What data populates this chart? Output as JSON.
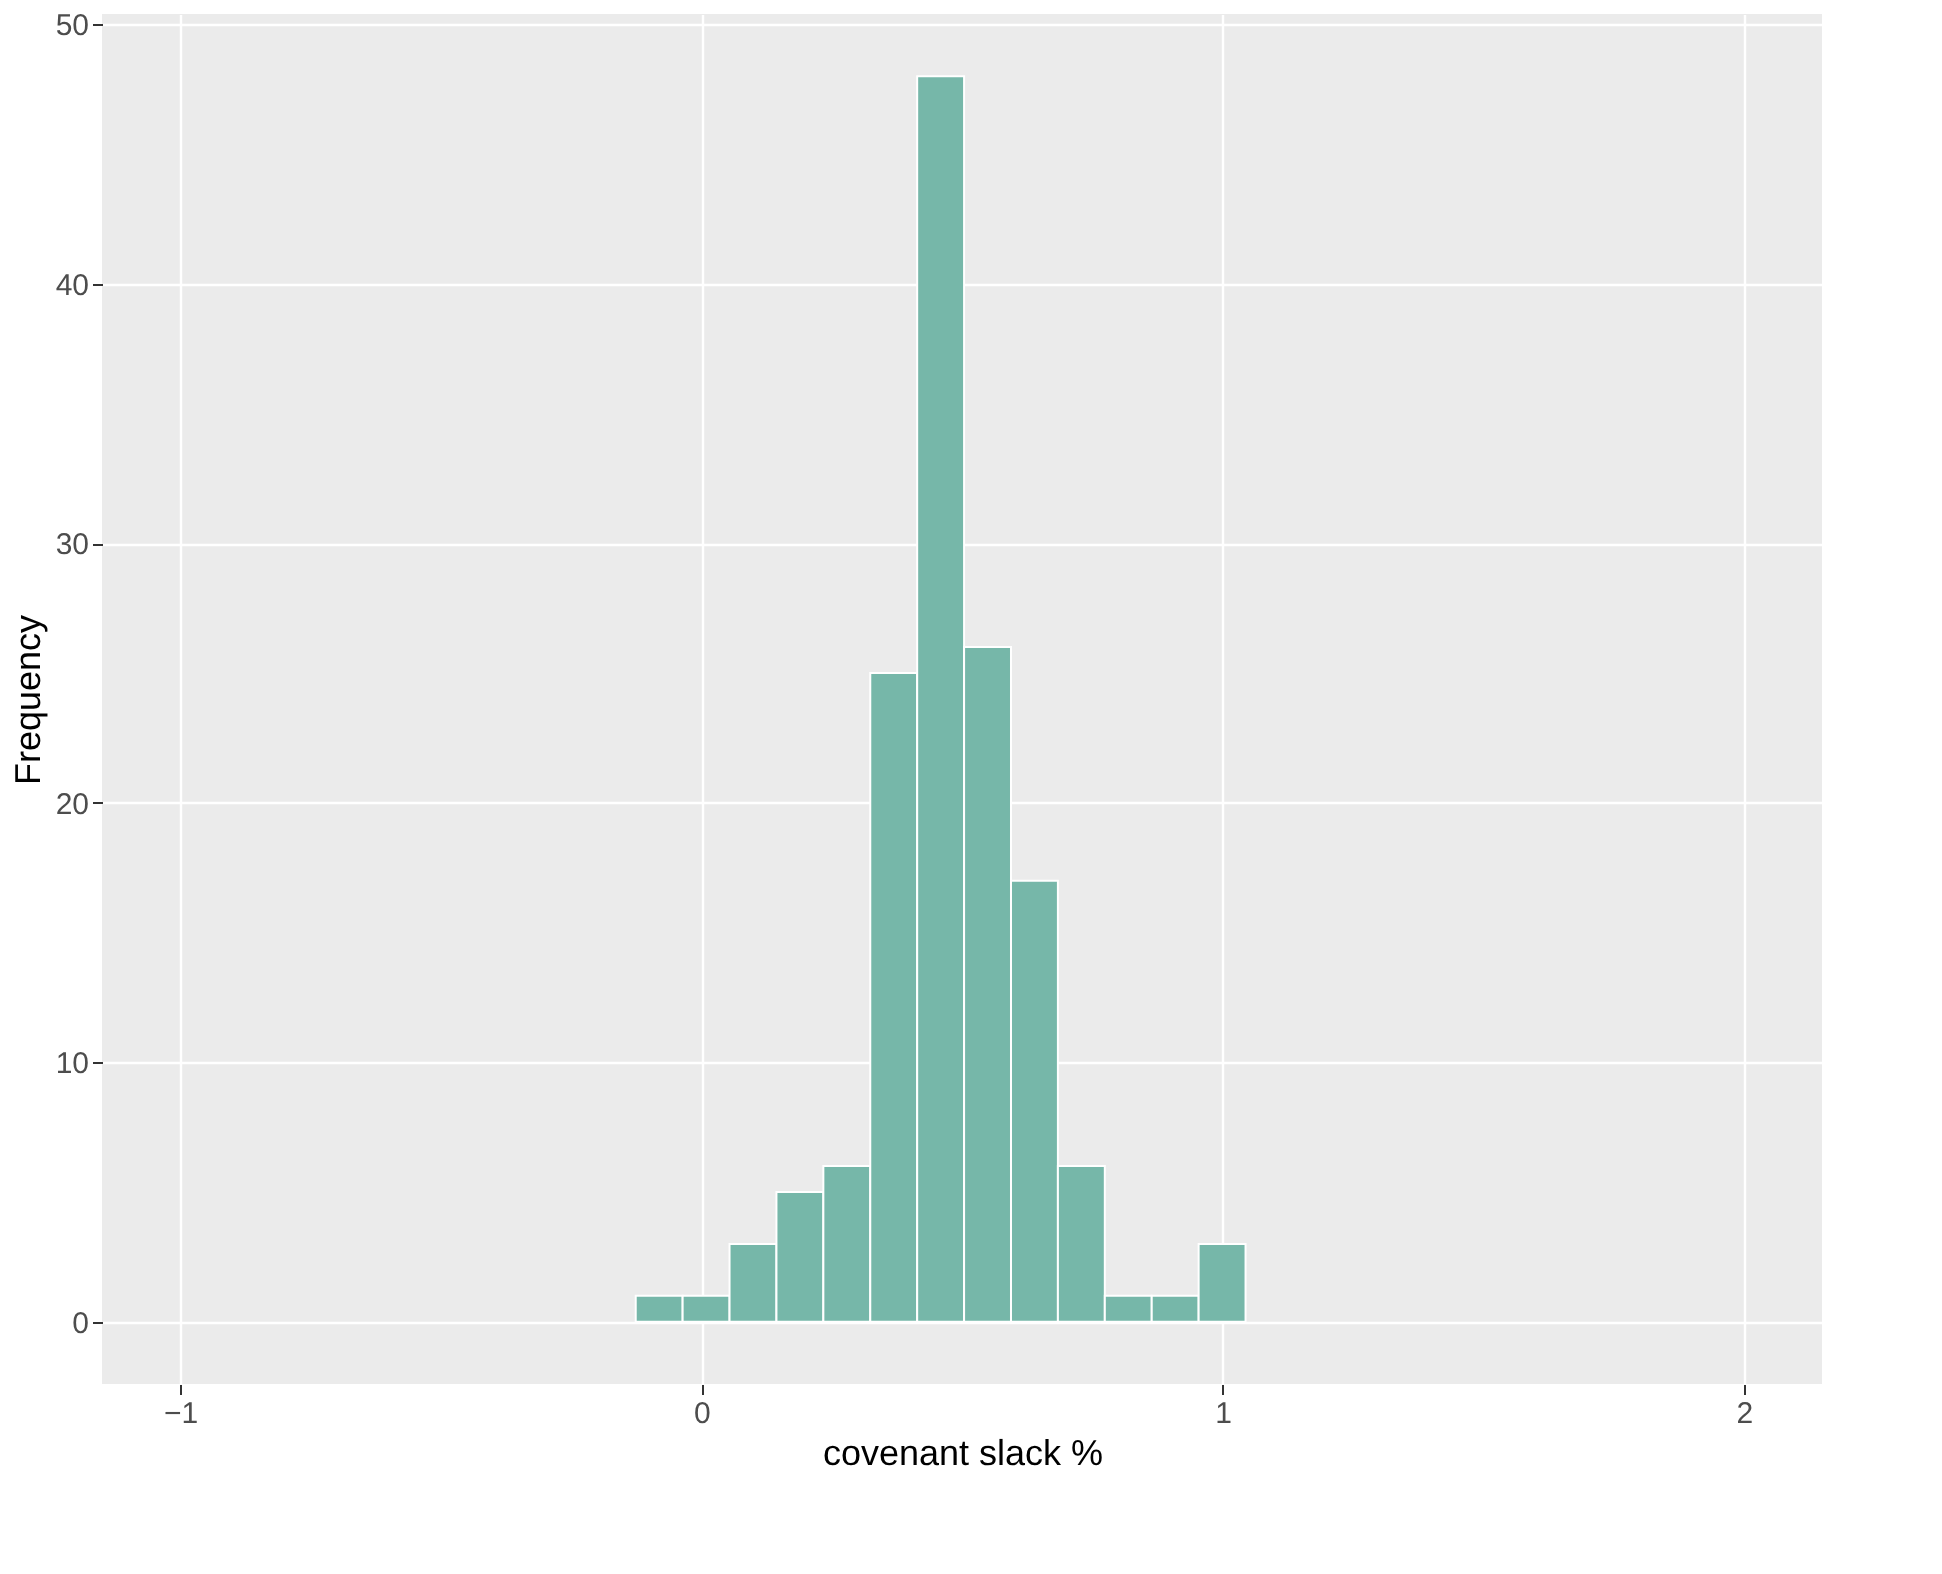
{
  "chart_data": {
    "type": "histogram",
    "xlabel": "covenant slack %",
    "ylabel": "Frequency",
    "bins": [
      -0.126,
      -0.036,
      0.054,
      0.144,
      0.234,
      0.324,
      0.414,
      0.504,
      0.594,
      0.684,
      0.774,
      0.864,
      0.954,
      1.044
    ],
    "values": [
      1,
      1,
      3,
      5,
      6,
      25,
      48,
      26,
      17,
      6,
      1,
      1,
      3
    ],
    "color": "#76b7a9",
    "xlim": [
      -1.15,
      2.15
    ],
    "xticks": [
      -1,
      0,
      1,
      2
    ],
    "ylim": [
      -2.4,
      50.4
    ],
    "yticks": [
      0,
      10,
      20,
      30,
      40,
      50
    ],
    "grid": true
  }
}
